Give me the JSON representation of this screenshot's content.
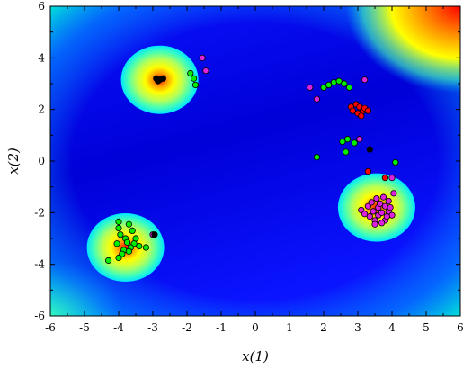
{
  "chart_data": {
    "type": "scatter",
    "title": "",
    "xlabel": "x(1)",
    "ylabel": "x(2)",
    "xlim": [
      -6,
      6
    ],
    "ylim": [
      -6,
      6
    ],
    "xticks": [
      "-6",
      "-5",
      "-4",
      "-3",
      "-2",
      "-1",
      "0",
      "1",
      "2",
      "3",
      "4",
      "5",
      "6"
    ],
    "yticks": [
      "6",
      "4",
      "2",
      "0",
      "-2",
      "-4",
      "-6"
    ],
    "grid": false,
    "legend": "none",
    "background": {
      "kind": "heatmap",
      "colormap": [
        "#0000b4",
        "#0000ff",
        "#0064ff",
        "#00c8ff",
        "#46ffb4",
        "#ffff00",
        "#ff9600",
        "#ff0000"
      ],
      "basins": [
        {
          "x": -2.8,
          "y": 3.15
        },
        {
          "x": -3.8,
          "y": -3.35
        },
        {
          "x": 3.55,
          "y": -1.8
        }
      ]
    },
    "series": [
      {
        "color": "#00ee00",
        "points": [
          [
            -1.9,
            3.4
          ],
          [
            -1.8,
            3.2
          ],
          [
            -1.75,
            2.95
          ],
          [
            2.0,
            2.85
          ],
          [
            2.15,
            2.95
          ],
          [
            2.3,
            3.05
          ],
          [
            2.45,
            3.1
          ],
          [
            2.6,
            3.0
          ],
          [
            2.75,
            2.85
          ],
          [
            2.55,
            0.75
          ],
          [
            2.7,
            0.85
          ],
          [
            2.9,
            0.7
          ],
          [
            2.65,
            0.35
          ],
          [
            1.8,
            0.15
          ],
          [
            4.1,
            -0.05
          ],
          [
            -4.0,
            -2.35
          ],
          [
            -3.7,
            -2.45
          ],
          [
            -4.0,
            -2.6
          ],
          [
            -3.6,
            -2.7
          ],
          [
            -3.95,
            -2.85
          ],
          [
            -3.8,
            -3.0
          ],
          [
            -3.5,
            -3.0
          ],
          [
            -3.75,
            -3.15
          ],
          [
            -3.55,
            -3.2
          ],
          [
            -4.05,
            -3.2
          ],
          [
            -3.65,
            -3.35
          ],
          [
            -3.4,
            -3.3
          ],
          [
            -3.85,
            -3.45
          ],
          [
            -3.7,
            -3.5
          ],
          [
            -3.2,
            -3.35
          ],
          [
            -3.9,
            -3.6
          ],
          [
            -4.0,
            -3.75
          ],
          [
            -4.3,
            -3.85
          ]
        ]
      },
      {
        "color": "#ff0000",
        "points": [
          [
            2.8,
            2.1
          ],
          [
            2.95,
            2.2
          ],
          [
            3.05,
            2.1
          ],
          [
            2.85,
            1.95
          ],
          [
            3.0,
            1.85
          ],
          [
            3.15,
            1.95
          ],
          [
            3.2,
            2.05
          ],
          [
            3.3,
            1.95
          ],
          [
            3.1,
            1.75
          ],
          [
            3.3,
            -0.4
          ],
          [
            3.8,
            -0.65
          ]
        ]
      },
      {
        "color": "#dd22dd",
        "points": [
          [
            -1.55,
            4.0
          ],
          [
            -1.45,
            3.5
          ],
          [
            1.6,
            2.85
          ],
          [
            1.8,
            2.4
          ],
          [
            3.2,
            3.15
          ],
          [
            3.05,
            0.85
          ],
          [
            -3.0,
            -2.85
          ],
          [
            4.0,
            -0.65
          ],
          [
            4.05,
            -1.25
          ],
          [
            3.1,
            -1.9
          ],
          [
            3.2,
            -2.05
          ],
          [
            3.3,
            -1.75
          ],
          [
            3.35,
            -2.15
          ],
          [
            3.4,
            -1.6
          ],
          [
            3.45,
            -1.95
          ],
          [
            3.5,
            -2.3
          ],
          [
            3.55,
            -1.45
          ],
          [
            3.6,
            -1.8
          ],
          [
            3.6,
            -2.1
          ],
          [
            3.65,
            -1.65
          ],
          [
            3.7,
            -2.0
          ],
          [
            3.75,
            -1.4
          ],
          [
            3.8,
            -1.75
          ],
          [
            3.8,
            -2.3
          ],
          [
            3.9,
            -1.55
          ],
          [
            3.9,
            -1.95
          ],
          [
            4.0,
            -2.1
          ],
          [
            3.5,
            -2.45
          ],
          [
            3.95,
            -1.8
          ],
          [
            3.7,
            -2.4
          ],
          [
            3.85,
            -2.15
          ]
        ]
      },
      {
        "color": "#000000",
        "points": [
          [
            -2.9,
            3.2
          ],
          [
            -2.8,
            3.15
          ],
          [
            -2.7,
            3.2
          ],
          [
            -2.85,
            3.1
          ],
          [
            3.35,
            0.45
          ],
          [
            -2.95,
            -2.85
          ]
        ]
      }
    ]
  }
}
